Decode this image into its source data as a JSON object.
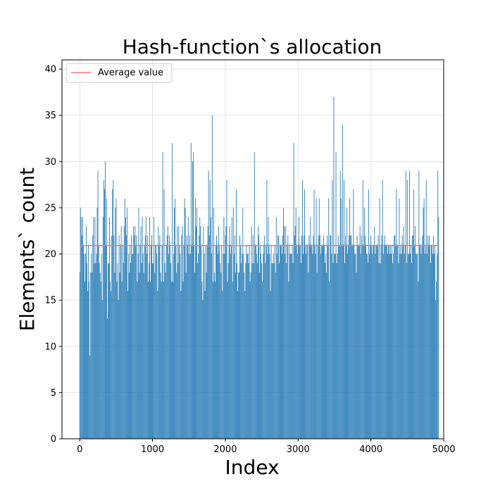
{
  "chart_data": {
    "type": "bar",
    "title": "Hash-function`s allocation",
    "xlabel": "Index",
    "ylabel": "Elements` count",
    "xlim": [
      -244,
      5000
    ],
    "ylim": [
      0,
      41
    ],
    "x_ticks": [
      0,
      1000,
      2000,
      3000,
      4000,
      5000
    ],
    "x_tick_labels": [
      "0",
      "1000",
      "2000",
      "3000",
      "4000",
      "5000"
    ],
    "y_ticks": [
      0,
      5,
      10,
      15,
      20,
      25,
      30,
      35,
      40
    ],
    "y_tick_labels": [
      "0",
      "5",
      "10",
      "15",
      "20",
      "25",
      "30",
      "35",
      "40"
    ],
    "grid": true,
    "legend": {
      "position": "top-left",
      "entries": [
        {
          "label": "Average value",
          "color": "#f07b7b"
        }
      ]
    },
    "average": 20.9,
    "bar_color": "#1f77b4",
    "x_start": 0,
    "bin_width": 10,
    "bin_count": 480,
    "values": [
      18,
      25,
      24,
      22,
      24,
      21,
      20,
      17,
      20,
      23,
      19,
      16,
      21,
      17,
      9,
      18,
      20,
      18,
      22,
      24,
      19,
      24,
      19,
      20,
      25,
      29,
      21,
      19,
      18,
      17,
      20,
      15,
      24,
      28,
      27,
      30,
      21,
      26,
      13,
      19,
      19,
      24,
      17,
      16,
      22,
      27,
      28,
      22,
      18,
      25,
      26,
      17,
      19,
      15,
      22,
      18,
      21,
      23,
      17,
      21,
      19,
      23,
      26,
      24,
      22,
      25,
      16,
      20,
      18,
      21,
      19,
      22,
      20,
      20,
      23,
      22,
      23,
      21,
      22,
      17,
      20,
      25,
      18,
      21,
      23,
      19,
      24,
      20,
      18,
      21,
      22,
      24,
      20,
      22,
      17,
      19,
      24,
      17,
      21,
      22,
      19,
      19,
      24,
      18,
      21,
      21,
      20,
      16,
      23,
      21,
      22,
      18,
      17,
      21,
      31,
      17,
      27,
      19,
      18,
      21,
      22,
      23,
      20,
      22,
      21,
      19,
      17,
      32,
      17,
      20,
      25,
      26,
      21,
      18,
      23,
      19,
      23,
      21,
      20,
      16,
      22,
      23,
      17,
      21,
      26,
      25,
      18,
      22,
      21,
      24,
      20,
      22,
      20,
      32,
      21,
      30,
      31,
      21,
      18,
      26,
      23,
      25,
      19,
      20,
      22,
      24,
      23,
      21,
      17,
      15,
      23,
      20,
      16,
      21,
      18,
      21,
      23,
      29,
      22,
      28,
      24,
      20,
      35,
      17,
      25,
      18,
      17,
      21,
      22,
      21,
      20,
      23,
      21,
      19,
      18,
      21,
      16,
      20,
      24,
      20,
      22,
      23,
      28,
      17,
      19,
      21,
      23,
      20,
      21,
      24,
      17,
      25,
      20,
      22,
      18,
      27,
      19,
      16,
      18,
      18,
      22,
      21,
      19,
      20,
      25,
      20,
      18,
      16,
      19,
      21,
      20,
      20,
      19,
      21,
      17,
      18,
      23,
      19,
      22,
      19,
      31,
      21,
      21,
      20,
      19,
      23,
      22,
      18,
      21,
      20,
      19,
      17,
      20,
      21,
      22,
      19,
      21,
      28,
      20,
      24,
      21,
      20,
      16,
      21,
      19,
      19,
      20,
      19,
      21,
      18,
      24,
      20,
      22,
      22,
      19,
      21,
      21,
      21,
      20,
      22,
      25,
      23,
      20,
      23,
      19,
      21,
      22,
      17,
      21,
      20,
      20,
      20,
      21,
      19,
      32,
      22,
      23,
      25,
      21,
      20,
      21,
      24,
      21,
      21,
      19,
      22,
      28,
      20,
      22,
      27,
      21,
      20,
      21,
      21,
      18,
      22,
      21,
      24,
      21,
      21,
      20,
      22,
      27,
      21,
      20,
      26,
      18,
      21,
      22,
      26,
      22,
      20,
      21,
      21,
      21,
      22,
      21,
      19,
      20,
      18,
      22,
      21,
      26,
      17,
      22,
      22,
      20,
      28,
      19,
      37,
      20,
      20,
      31,
      19,
      20,
      22,
      21,
      21,
      29,
      26,
      21,
      34,
      21,
      28,
      19,
      22,
      21,
      25,
      20,
      21,
      22,
      26,
      22,
      22,
      21,
      21,
      27,
      21,
      20,
      20,
      18,
      22,
      21,
      21,
      21,
      23,
      20,
      22,
      21,
      28,
      21,
      25,
      22,
      21,
      20,
      20,
      19,
      27,
      20,
      21,
      22,
      21,
      20,
      21,
      21,
      23,
      20,
      21,
      21,
      21,
      22,
      19,
      26,
      19,
      21,
      22,
      28,
      20,
      21,
      22,
      21,
      21,
      21,
      20,
      21,
      21,
      20,
      21,
      20,
      21,
      19,
      20,
      22,
      22,
      21,
      27,
      21,
      21,
      19,
      26,
      20,
      21,
      20,
      22,
      21,
      23,
      20,
      21,
      29,
      19,
      28,
      20,
      20,
      29,
      20,
      21,
      19,
      22,
      22,
      27,
      21,
      23,
      20,
      20,
      20,
      17,
      29,
      21,
      21,
      20,
      21,
      22,
      25,
      26,
      20,
      21,
      28,
      20,
      22,
      21,
      22,
      21,
      19,
      21,
      21,
      20,
      22,
      20,
      21,
      15,
      17,
      20,
      29,
      24
    ]
  }
}
